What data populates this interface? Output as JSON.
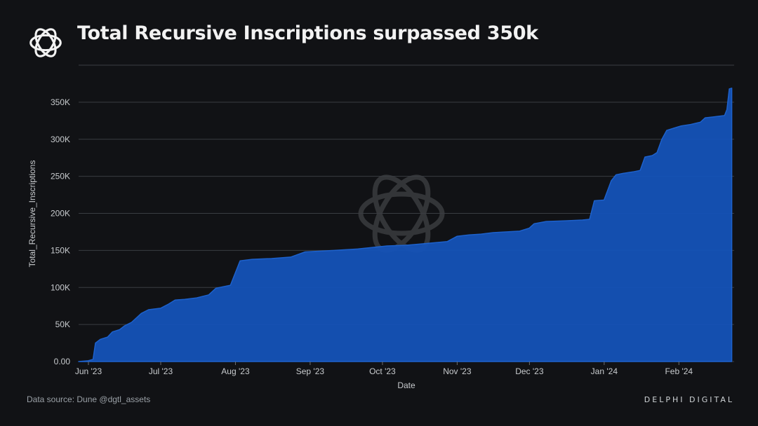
{
  "header": {
    "title": "Total Recursive Inscriptions surpassed 350k",
    "logo_icon": "delphi-knot-logo-icon"
  },
  "footer": {
    "source": "Data source: Dune @dgtl_assets",
    "brand": "DELPHI DIGITAL"
  },
  "colors": {
    "background": "#111215",
    "area_fill": "#1553b8",
    "area_line": "#1e66d6",
    "grid": "#3a3d42"
  },
  "chart_data": {
    "type": "area",
    "title": "Total Recursive Inscriptions surpassed 350k",
    "xlabel": "Date",
    "ylabel": "Total_Recursive_Inscriptions",
    "x_ticks": [
      "Jun '23",
      "Jul '23",
      "Aug '23",
      "Sep '23",
      "Oct '23",
      "Nov '23",
      "Dec '23",
      "Jan '24",
      "Feb '24"
    ],
    "y_ticks": [
      {
        "value": 0,
        "label": "0.00"
      },
      {
        "value": 50000,
        "label": "50K"
      },
      {
        "value": 100000,
        "label": "100K"
      },
      {
        "value": 150000,
        "label": "150K"
      },
      {
        "value": 200000,
        "label": "200K"
      },
      {
        "value": 250000,
        "label": "250K"
      },
      {
        "value": 300000,
        "label": "300K"
      },
      {
        "value": 350000,
        "label": "350K"
      }
    ],
    "ylim": [
      0,
      400000
    ],
    "xlim": [
      "2023-06-01",
      "2024-02-14"
    ],
    "grid": true,
    "series": [
      {
        "points": [
          [
            "2023-06-01",
            0
          ],
          [
            "2023-06-05",
            1000
          ],
          [
            "2023-06-07",
            3000
          ],
          [
            "2023-06-08",
            25000
          ],
          [
            "2023-06-10",
            30000
          ],
          [
            "2023-06-13",
            33000
          ],
          [
            "2023-06-15",
            40000
          ],
          [
            "2023-06-18",
            43000
          ],
          [
            "2023-06-20",
            48000
          ],
          [
            "2023-06-23",
            53000
          ],
          [
            "2023-06-27",
            65000
          ],
          [
            "2023-06-30",
            70000
          ],
          [
            "2023-07-05",
            72000
          ],
          [
            "2023-07-08",
            77000
          ],
          [
            "2023-07-11",
            83000
          ],
          [
            "2023-07-15",
            84000
          ],
          [
            "2023-07-20",
            86000
          ],
          [
            "2023-07-25",
            90000
          ],
          [
            "2023-07-28",
            99000
          ],
          [
            "2023-08-03",
            103000
          ],
          [
            "2023-08-07",
            136000
          ],
          [
            "2023-08-12",
            138000
          ],
          [
            "2023-08-20",
            139000
          ],
          [
            "2023-08-28",
            141000
          ],
          [
            "2023-09-03",
            148000
          ],
          [
            "2023-09-15",
            150000
          ],
          [
            "2023-09-25",
            152000
          ],
          [
            "2023-10-01",
            154000
          ],
          [
            "2023-10-07",
            156000
          ],
          [
            "2023-10-15",
            157000
          ],
          [
            "2023-10-22",
            159000
          ],
          [
            "2023-11-01",
            162000
          ],
          [
            "2023-11-05",
            169000
          ],
          [
            "2023-11-10",
            171000
          ],
          [
            "2023-11-15",
            172000
          ],
          [
            "2023-11-20",
            174000
          ],
          [
            "2023-12-01",
            176000
          ],
          [
            "2023-12-05",
            180000
          ],
          [
            "2023-12-07",
            186000
          ],
          [
            "2023-12-12",
            189000
          ],
          [
            "2023-12-20",
            190000
          ],
          [
            "2023-12-27",
            191000
          ],
          [
            "2023-12-30",
            192000
          ],
          [
            "2024-01-01",
            217000
          ],
          [
            "2024-01-05",
            218000
          ],
          [
            "2024-01-08",
            244000
          ],
          [
            "2024-01-10",
            252000
          ],
          [
            "2024-01-13",
            254000
          ],
          [
            "2024-01-17",
            256000
          ],
          [
            "2024-01-20",
            258000
          ],
          [
            "2024-01-22",
            276000
          ],
          [
            "2024-01-25",
            278000
          ],
          [
            "2024-01-27",
            282000
          ],
          [
            "2024-01-29",
            300000
          ],
          [
            "2024-01-31",
            312000
          ],
          [
            "2024-02-03",
            315000
          ],
          [
            "2024-02-06",
            318000
          ],
          [
            "2024-02-10",
            320000
          ],
          [
            "2024-02-14",
            323000
          ],
          [
            "2024-02-16",
            329000
          ],
          [
            "2024-02-19",
            330000
          ],
          [
            "2024-02-24",
            332000
          ],
          [
            "2024-02-25",
            340000
          ],
          [
            "2024-02-26",
            368000
          ],
          [
            "2024-02-27",
            369000
          ]
        ]
      }
    ]
  }
}
